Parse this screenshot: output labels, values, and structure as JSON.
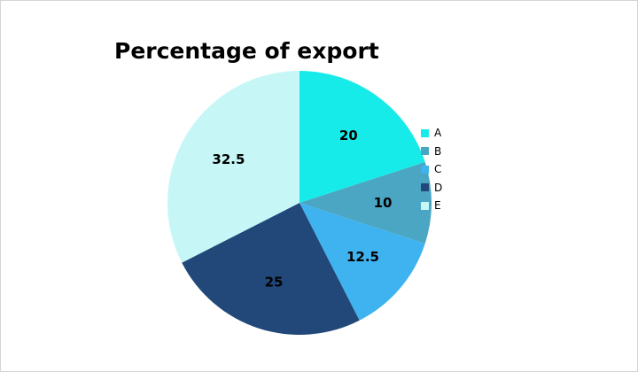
{
  "chart_data": {
    "type": "pie",
    "title": "Percentage of export",
    "categories": [
      "A",
      "B",
      "C",
      "D",
      "E"
    ],
    "values": [
      20,
      10,
      12.5,
      25,
      32.5
    ],
    "value_labels": [
      "20",
      "10",
      "12.5",
      "25",
      "32.5"
    ],
    "colors": [
      "#17ebe9",
      "#4aa6c3",
      "#3fb3f0",
      "#214879",
      "#c6f7f6"
    ],
    "start_angle": "12 o'clock",
    "direction": "clockwise",
    "legend": {
      "position": "right",
      "entries": [
        "A",
        "B",
        "C",
        "D",
        "E"
      ]
    }
  }
}
